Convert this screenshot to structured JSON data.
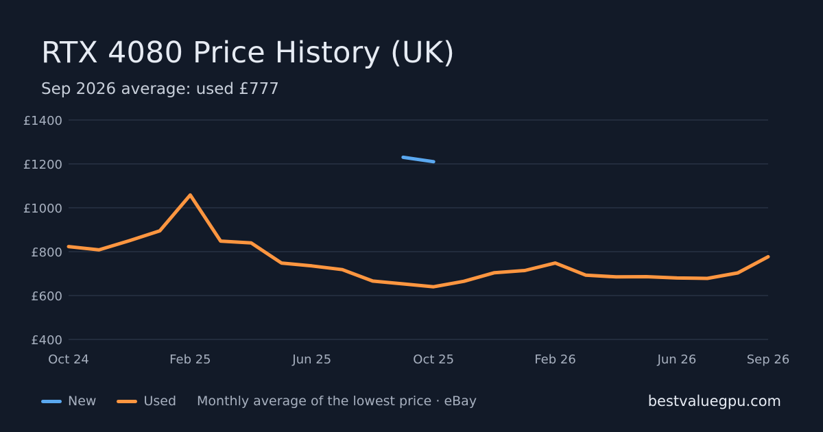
{
  "title": "RTX 4080 Price History (UK)",
  "subtitle": "Sep 2026 average: used £777",
  "legend": {
    "new_label": "New",
    "used_label": "Used",
    "note": "Monthly average of the lowest price · eBay"
  },
  "brand": "bestvaluegpu.com",
  "colors": {
    "background": "#121a28",
    "new": "#5aa8f0",
    "used": "#ff9640",
    "grid": "#273244",
    "tick": "#a7b0bf"
  },
  "chart_data": {
    "type": "line",
    "x": [
      "Oct 24",
      "Nov 24",
      "Dec 24",
      "Jan 25",
      "Feb 25",
      "Mar 25",
      "Apr 25",
      "May 25",
      "Jun 25",
      "Jul 25",
      "Aug 25",
      "Sep 25",
      "Oct 25",
      "Nov 25",
      "Dec 25",
      "Jan 26",
      "Feb 26",
      "Mar 26",
      "Apr 26",
      "May 26",
      "Jun 26",
      "Jul 26",
      "Aug 26",
      "Sep 26"
    ],
    "x_tick_labels": [
      "Oct 24",
      "Feb 25",
      "Jun 25",
      "Oct 25",
      "Feb 26",
      "Jun 26",
      "Sep 26"
    ],
    "y_tick_labels": [
      "£400",
      "£600",
      "£800",
      "£1000",
      "£1200",
      "£1400"
    ],
    "y_ticks": [
      400,
      600,
      800,
      1000,
      1200,
      1400
    ],
    "ylim": [
      400,
      1400
    ],
    "grid": true,
    "legend_position": "bottom-left",
    "series": [
      {
        "name": "New",
        "values": [
          null,
          null,
          null,
          null,
          null,
          null,
          null,
          null,
          null,
          null,
          null,
          1230,
          1210,
          null,
          null,
          null,
          null,
          null,
          null,
          null,
          null,
          null,
          null,
          null
        ]
      },
      {
        "name": "Used",
        "values": [
          823,
          808,
          850,
          895,
          1058,
          848,
          840,
          748,
          735,
          718,
          666,
          653,
          640,
          665,
          704,
          714,
          748,
          693,
          685,
          686,
          680,
          678,
          703,
          777
        ]
      }
    ]
  }
}
